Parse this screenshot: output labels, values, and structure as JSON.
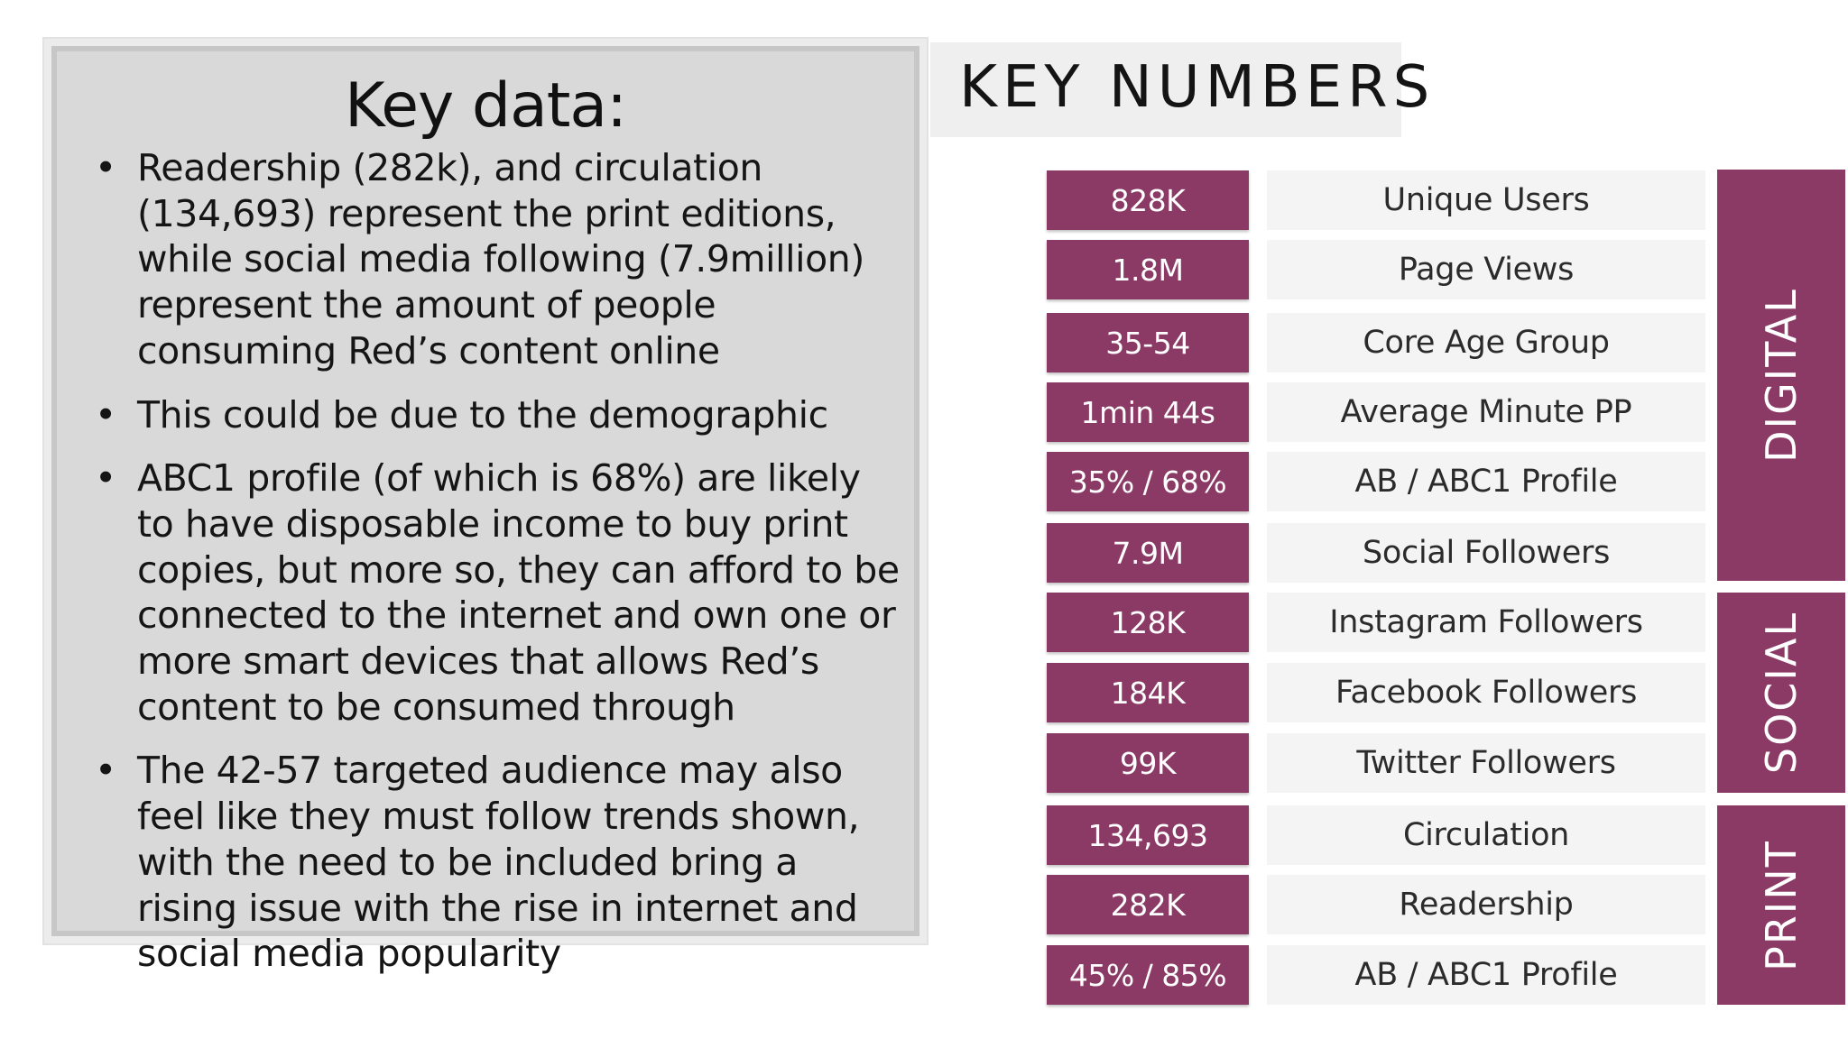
{
  "left_panel": {
    "title": "Key data:",
    "bullets": [
      "Readership (282k), and circulation (134,693) represent the print editions, while social media following (7.9million) represent the amount of people consuming Red’s content online",
      "This could be due to the demographic",
      "ABC1 profile (of which is 68%) are likely to have disposable income to buy print copies, but more so, they can afford to be connected to the internet and own one or more smart devices that allows Red’s content to be consumed through",
      "The 42-57 targeted audience may also feel like they must follow trends shown, with the need to be included bring a rising issue with the rise in internet and social media popularity"
    ],
    "bullet_glyph": "•"
  },
  "infographic": {
    "title": "KEY NUMBERS",
    "accent_color": "#8a3a64",
    "stats": [
      {
        "value": "828K",
        "label": "Unique Users"
      },
      {
        "value": "1.8M",
        "label": "Page Views"
      },
      {
        "value": "35-54",
        "label": "Core Age Group"
      },
      {
        "value": "1min 44s",
        "label": "Average Minute PP"
      },
      {
        "value": "35% / 68%",
        "label": "AB / ABC1 Profile"
      },
      {
        "value": "7.9M",
        "label": "Social Followers"
      },
      {
        "value": "128K",
        "label": "Instagram Followers"
      },
      {
        "value": "184K",
        "label": "Facebook Followers"
      },
      {
        "value": "99K",
        "label": "Twitter Followers"
      },
      {
        "value": "134,693",
        "label": "Circulation"
      },
      {
        "value": "282K",
        "label": "Readership"
      },
      {
        "value": "45% / 85%",
        "label": "AB / ABC1 Profile"
      }
    ],
    "categories": [
      {
        "label": "DIGITAL"
      },
      {
        "label": "SOCIAL"
      },
      {
        "label": "PRINT"
      }
    ]
  }
}
